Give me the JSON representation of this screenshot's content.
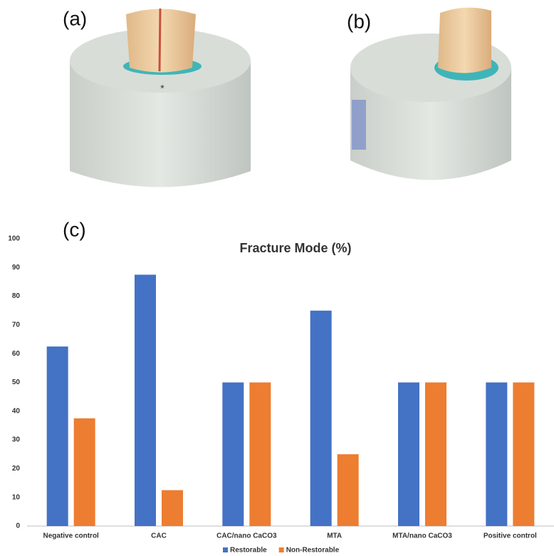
{
  "panel_labels": [
    "(a)",
    "(b)",
    "(c)"
  ],
  "chart_data": {
    "type": "bar",
    "title": "Fracture Mode (%)",
    "categories": [
      "Negative control",
      "CAC",
      "CAC/nano CaCO3",
      "MTA",
      "MTA/nano CaCO3",
      "Positive control"
    ],
    "series": [
      {
        "name": "Restorable",
        "color": "#4472c4",
        "values": [
          62.5,
          87.5,
          50,
          75,
          50,
          50
        ]
      },
      {
        "name": "Non-Restorable",
        "color": "#ed7d31",
        "values": [
          37.5,
          12.5,
          50,
          25,
          50,
          50
        ]
      }
    ],
    "ylim": [
      0,
      100
    ],
    "yticks": [
      0,
      10,
      20,
      30,
      40,
      50,
      60,
      70,
      80,
      90,
      100
    ],
    "grid": false,
    "legend": "bottom"
  }
}
